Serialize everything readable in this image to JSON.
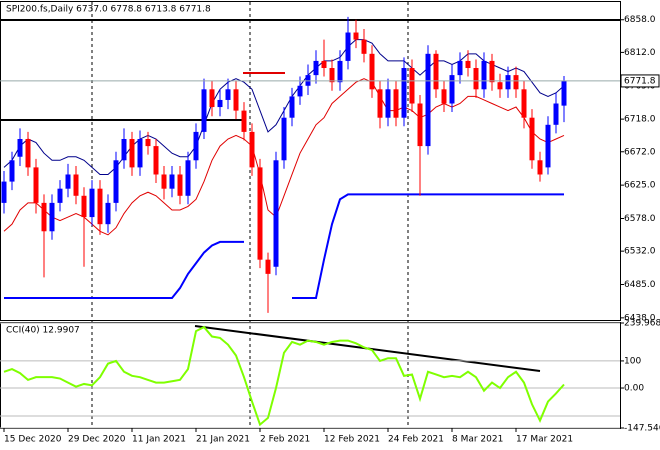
{
  "chart_data": {
    "type": "candlestick",
    "title": "SPI200.fs,Daily  6737.0 6778.8 6713.8 6771.8",
    "categories": [
      "15 Dec 2020",
      null,
      null,
      null,
      null,
      null,
      null,
      null,
      "29 Dec 2020",
      null,
      null,
      null,
      null,
      null,
      null,
      null,
      "11 Jan 2021",
      null,
      null,
      null,
      null,
      null,
      null,
      null,
      "21 Jan 2021",
      null,
      null,
      null,
      null,
      null,
      null,
      null,
      "2 Feb 2021",
      null,
      null,
      null,
      null,
      null,
      null,
      null,
      "12 Feb 2021",
      null,
      null,
      null,
      null,
      null,
      null,
      null,
      "24 Feb 2021",
      null,
      null,
      null,
      null,
      null,
      null,
      null,
      "8 Mar 2021",
      null,
      null,
      null,
      null,
      null,
      null,
      null,
      "17 Mar 2021",
      null,
      null,
      null,
      null,
      null,
      null
    ],
    "open": [
      6600,
      6630,
      6665,
      6690,
      6650,
      6600,
      6560,
      6600,
      6620,
      6640,
      6610,
      6580,
      6620,
      6570,
      6600,
      6660,
      6690,
      6650,
      6690,
      6680,
      6640,
      6620,
      6640,
      6610,
      6660,
      6700,
      6760,
      6735,
      6745,
      6760,
      6730,
      6700,
      6650,
      6520,
      6510,
      6660,
      6720,
      6750,
      6765,
      6780,
      6800,
      6790,
      6770,
      6800,
      6840,
      6830,
      6810,
      6760,
      6720,
      6760,
      6720,
      6790,
      6740,
      6680,
      6810,
      6760,
      6740,
      6780,
      6800,
      6790,
      6760,
      6800,
      6770,
      6760,
      6780,
      6760,
      6720,
      6660,
      6650,
      6710,
      6737
    ],
    "high": [
      6645,
      6672,
      6705,
      6700,
      6662,
      6612,
      6612,
      6632,
      6655,
      6652,
      6622,
      6632,
      6632,
      6612,
      6672,
      6705,
      6700,
      6702,
      6700,
      6690,
      6652,
      6652,
      6652,
      6672,
      6712,
      6775,
      6772,
      6760,
      6775,
      6772,
      6742,
      6712,
      6662,
      6530,
      6672,
      6735,
      6762,
      6778,
      6795,
      6815,
      6830,
      6802,
      6815,
      6862,
      6858,
      6845,
      6822,
      6772,
      6775,
      6772,
      6805,
      6802,
      6752,
      6822,
      6815,
      6772,
      6795,
      6812,
      6815,
      6802,
      6812,
      6810,
      6782,
      6792,
      6792,
      6772,
      6732,
      6672,
      6722,
      6755,
      6778.8
    ],
    "low": [
      6585,
      6618,
      6652,
      6638,
      6585,
      6495,
      6548,
      6588,
      6608,
      6598,
      6510,
      6568,
      6555,
      6558,
      6588,
      6648,
      6638,
      6638,
      6668,
      6628,
      6605,
      6608,
      6598,
      6598,
      6648,
      6690,
      6722,
      6722,
      6732,
      6718,
      6688,
      6638,
      6508,
      6445,
      6498,
      6648,
      6708,
      6738,
      6752,
      6768,
      6778,
      6758,
      6758,
      6788,
      6818,
      6798,
      6748,
      6705,
      6708,
      6708,
      6708,
      6728,
      6610,
      6668,
      6748,
      6728,
      6728,
      6768,
      6778,
      6748,
      6748,
      6758,
      6748,
      6748,
      6748,
      6705,
      6648,
      6630,
      6640,
      6698,
      6713.8
    ],
    "close": [
      6630,
      6660,
      6690,
      6650,
      6600,
      6560,
      6600,
      6620,
      6640,
      6610,
      6580,
      6620,
      6570,
      6600,
      6660,
      6690,
      6650,
      6690,
      6680,
      6640,
      6620,
      6640,
      6610,
      6660,
      6700,
      6760,
      6735,
      6745,
      6760,
      6730,
      6700,
      6650,
      6520,
      6500,
      6660,
      6720,
      6750,
      6765,
      6780,
      6800,
      6790,
      6770,
      6800,
      6840,
      6830,
      6810,
      6760,
      6720,
      6760,
      6720,
      6790,
      6740,
      6680,
      6810,
      6760,
      6740,
      6780,
      6800,
      6790,
      6760,
      6800,
      6770,
      6760,
      6780,
      6760,
      6720,
      6660,
      6640,
      6710,
      6740,
      6771.8
    ],
    "up_color": "#0000ff",
    "down_color": "#ff0000",
    "price_label": "6771.8",
    "ylim": [
      6435,
      6883
    ],
    "yticks": [
      {
        "value": 6858,
        "label": "6858.0"
      },
      {
        "value": 6812,
        "label": "6812.0"
      },
      {
        "value": 6765,
        "label": "6765.0"
      },
      {
        "value": 6718,
        "label": "6718.0"
      },
      {
        "value": 6672,
        "label": "6672.0"
      },
      {
        "value": 6625,
        "label": "6625.0"
      },
      {
        "value": 6578,
        "label": "6578.0"
      },
      {
        "value": 6532,
        "label": "6532.0"
      },
      {
        "value": 6485,
        "label": "6485.0"
      },
      {
        "value": 6438,
        "label": "6438.0"
      }
    ],
    "series": [
      {
        "color": "#00008b",
        "values": [
          6650,
          6660,
          6680,
          6690,
          6685,
          6670,
          6660,
          6660,
          6665,
          6665,
          6660,
          6650,
          6640,
          6640,
          6650,
          6665,
          6680,
          6690,
          6695,
          6690,
          6680,
          6670,
          6665,
          6665,
          6680,
          6710,
          6740,
          6760,
          6770,
          6775,
          6770,
          6760,
          6730,
          6700,
          6710,
          6730,
          6750,
          6765,
          6780,
          6790,
          6800,
          6800,
          6805,
          6820,
          6830,
          6830,
          6825,
          6810,
          6800,
          6800,
          6800,
          6790,
          6780,
          6790,
          6800,
          6800,
          6795,
          6800,
          6810,
          6810,
          6800,
          6795,
          6790,
          6785,
          6790,
          6785,
          6770,
          6755,
          6750,
          6755,
          6765
        ]
      },
      {
        "color": "#e00000",
        "values": [
          6560,
          6570,
          6590,
          6600,
          6600,
          6590,
          6580,
          6575,
          6580,
          6585,
          6580,
          6570,
          6560,
          6555,
          6565,
          6585,
          6600,
          6610,
          6615,
          6610,
          6600,
          6590,
          6590,
          6595,
          6605,
          6630,
          6660,
          6680,
          6690,
          6695,
          6690,
          6680,
          6640,
          6590,
          6580,
          6610,
          6640,
          6670,
          6690,
          6710,
          6720,
          6740,
          6750,
          6760,
          6770,
          6775,
          6770,
          6750,
          6730,
          6730,
          6735,
          6730,
          6720,
          6725,
          6735,
          6740,
          6735,
          6740,
          6750,
          6750,
          6745,
          6740,
          6735,
          6730,
          6735,
          6720,
          6700,
          6690,
          6685,
          6690,
          6695
        ]
      },
      {
        "color": "#0000ff",
        "values": [
          6466,
          6466,
          6466,
          6466,
          6466,
          6466,
          6466,
          6466,
          6466,
          6466,
          6466,
          6466,
          6466,
          6466,
          6466,
          6466,
          6466,
          6466,
          6466,
          6466,
          6466,
          6466,
          6480,
          6500,
          6515,
          6530,
          6540,
          6545,
          6545,
          6545,
          6545,
          null,
          null,
          null,
          null,
          null,
          6466,
          6466,
          6466,
          6466,
          6520,
          6570,
          6605,
          6612,
          6612,
          6612,
          6612,
          6612,
          6612,
          6612,
          6612,
          6612,
          6612,
          6612,
          6612,
          6612,
          6612,
          6612,
          6612,
          6612,
          6612,
          6612,
          6612,
          6612,
          6612,
          6612,
          6612,
          6612,
          6612,
          6612,
          6612
        ]
      }
    ],
    "indicator": {
      "title": "CCI(40) 12.9907",
      "color": "#7fff00",
      "values": [
        60,
        70,
        55,
        30,
        40,
        40,
        40,
        35,
        20,
        5,
        15,
        10,
        40,
        90,
        100,
        60,
        45,
        40,
        30,
        20,
        20,
        25,
        30,
        70,
        210,
        225,
        190,
        185,
        160,
        120,
        40,
        -50,
        -135,
        -110,
        0,
        130,
        170,
        160,
        175,
        170,
        160,
        170,
        175,
        175,
        165,
        150,
        140,
        100,
        110,
        110,
        45,
        50,
        -40,
        60,
        50,
        40,
        45,
        40,
        60,
        40,
        -10,
        20,
        0,
        40,
        60,
        20,
        -60,
        -120,
        -50,
        -20,
        13
      ],
      "ylim": [
        -147.546,
        239.9682
      ],
      "yticks": [
        239.9682,
        100,
        {
          "value": 0,
          "label": "0.00"
        },
        -147.546
      ]
    }
  }
}
